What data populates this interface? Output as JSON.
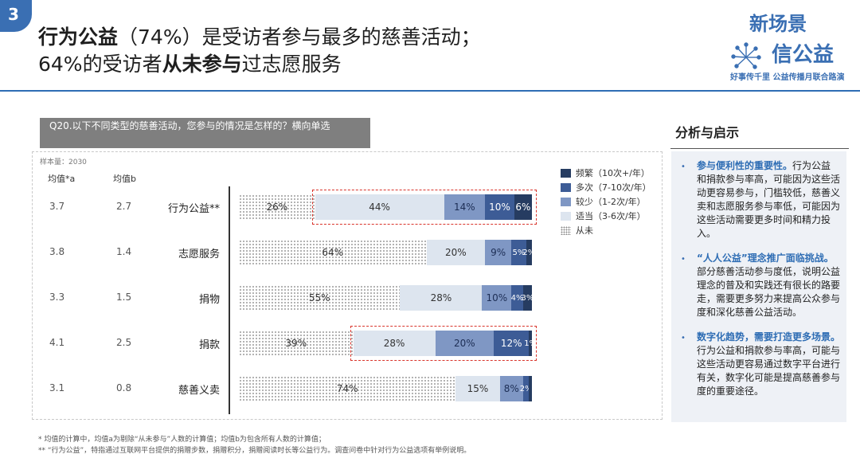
{
  "badge": "3",
  "title": {
    "line1_b": "行为公益",
    "line1_rest": "（74%）是受访者参与最多的慈善活动；",
    "line2_a": "64%的受访者",
    "line2_b": "从未参与",
    "line2_c": "过志愿服务"
  },
  "logo": {
    "line1": "新场景",
    "line2": "信公益",
    "line3": "好事传千里 公益传播月联合路演"
  },
  "question": "Q20.以下不同类型的慈善活动，您参与的情况是怎样的？横向单选",
  "sample": "样本量：2030",
  "col_a": "均值*a",
  "col_b": "均值b",
  "colors": {
    "never": "#ffffff",
    "occasional": "#dde5ef",
    "less": "#7f97c4",
    "multiple": "#3d5c96",
    "frequent": "#263c61",
    "highlight": "#d9342b"
  },
  "chart_data": {
    "type": "bar",
    "stacked": true,
    "orientation": "horizontal",
    "categories": [
      "行为公益**",
      "志愿服务",
      "捐物",
      "捐款",
      "慈善义卖"
    ],
    "mean_a": [
      "3.7",
      "3.8",
      "3.3",
      "4.1",
      "3.1"
    ],
    "mean_b": [
      "2.7",
      "1.4",
      "1.5",
      "2.5",
      "0.8"
    ],
    "series": [
      {
        "name": "从未",
        "style": "dot",
        "values": [
          26,
          64,
          55,
          39,
          74
        ],
        "labels": [
          "26%",
          "64%",
          "55%",
          "39%",
          "74%"
        ]
      },
      {
        "name": "适当（3-6次/年）",
        "style": "light",
        "values": [
          44,
          20,
          28,
          28,
          15
        ],
        "labels": [
          "44%",
          "20%",
          "28%",
          "28%",
          "15%"
        ]
      },
      {
        "name": "较少（1-2次/年）",
        "style": "mid",
        "values": [
          14,
          9,
          10,
          20,
          8
        ],
        "labels": [
          "14%",
          "9%",
          "10%",
          "20%",
          "8%"
        ]
      },
      {
        "name": "多次（7-10次/年）",
        "style": "dark",
        "values": [
          10,
          5,
          4,
          12,
          2
        ],
        "labels": [
          "10%",
          "5%",
          "4%",
          "12%",
          "2%"
        ]
      },
      {
        "name": "频繁（10次+/年）",
        "style": "darkest",
        "values": [
          6,
          2,
          3,
          1,
          1
        ],
        "labels": [
          "6%",
          "2%",
          "3%",
          "1%",
          ""
        ]
      }
    ],
    "legend_order": [
      "频繁（10次+/年）",
      "多次（7-10次/年）",
      "较少（1-2次/年）",
      "适当（3-6次/年）",
      "从未"
    ],
    "legend_position": "top-right",
    "highlighted_rows": [
      "行为公益**",
      "捐款"
    ]
  },
  "notes": [
    "* 均值的计算中，均值a为剔除“从未参与”人数的计算值；均值b为包含所有人数的计算值；",
    "** “行为公益”，特指通过互联网平台提供的捐赠步数，捐赠积分，捐赠阅读时长等公益行为。调查问卷中针对行为公益选项有举例说明。"
  ],
  "analysis": {
    "title": "分析与启示",
    "items": [
      {
        "hl": "参与便利性的重要性。",
        "text": "行为公益和捐款参与率高，可能因为这些活动更容易参与，门槛较低，慈善义卖和志愿服务参与率低，可能因为这些活动需要更多时间和精力投入。"
      },
      {
        "hl": "“人人公益”理念推广面临挑战。",
        "text": "部分慈善活动参与度低，说明公益理念的普及和实践还有很长的路要走，需要更多努力来提高公众参与度和深化慈善公益活动。"
      },
      {
        "hl": "数字化趋势，需要打造更多场景。",
        "text": "行为公益和捐款参与率高，可能与这些活动更容易通过数字平台进行有关，数字化可能是提高慈善参与度的重要途径。"
      }
    ]
  }
}
